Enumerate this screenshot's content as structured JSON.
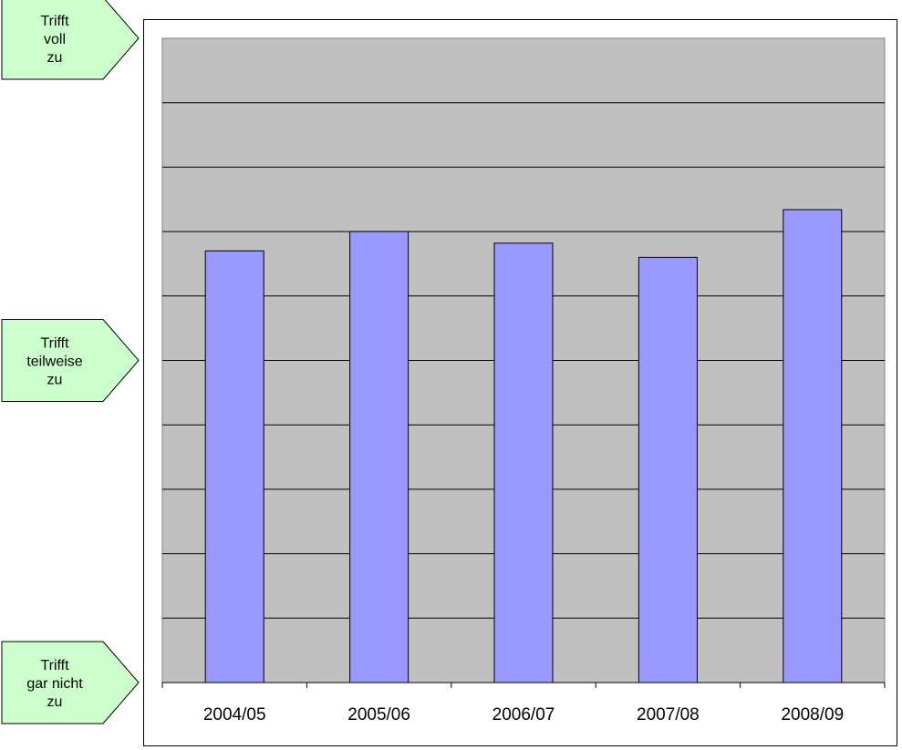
{
  "chart_data": {
    "type": "bar",
    "categories": [
      "2004/05",
      "2005/06",
      "2006/07",
      "2007/08",
      "2008/09"
    ],
    "values": [
      2.65,
      2.5,
      2.59,
      2.7,
      2.33
    ],
    "ylim": [
      1,
      6
    ],
    "y_direction": "inverted",
    "grid": true,
    "gridlines": 10,
    "legend": "none",
    "scale_labels": [
      {
        "lines": [
          "Trifft",
          "gar nicht",
          "zu"
        ],
        "value": 6
      },
      {
        "lines": [
          "Trifft",
          "teilweise",
          "zu"
        ],
        "value": 3.5
      },
      {
        "lines": [
          "Trifft",
          "voll",
          "zu"
        ],
        "value": 1
      }
    ],
    "colors": {
      "bar_fill": "#9999ff",
      "plot_area": "#c0c0c0",
      "callout_fill": "#ccffcc"
    }
  }
}
